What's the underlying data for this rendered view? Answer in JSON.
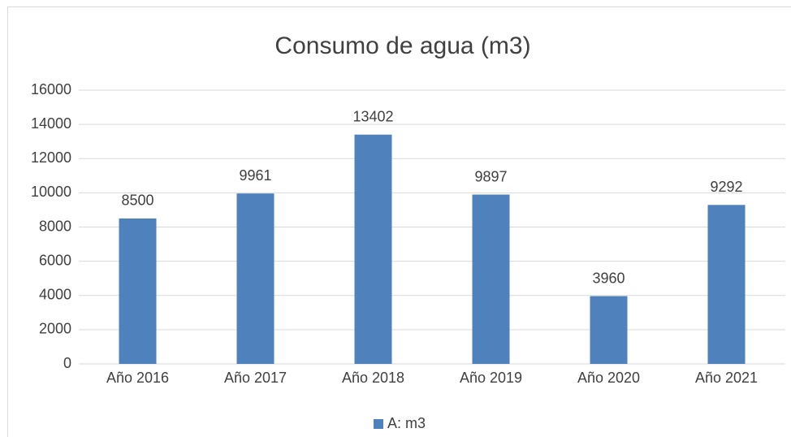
{
  "chart_data": {
    "type": "bar",
    "title": "Consumo de agua (m3)",
    "categories": [
      "Año 2016",
      "Año 2017",
      "Año 2018",
      "Año 2019",
      "Año 2020",
      "Año 2021"
    ],
    "series": [
      {
        "name": "A: m3",
        "color": "#4f81bd",
        "values": [
          8500,
          9961,
          13402,
          9897,
          3960,
          9292
        ]
      }
    ],
    "ylim": [
      0,
      16000
    ],
    "yticks": [
      0,
      2000,
      4000,
      6000,
      8000,
      10000,
      12000,
      14000,
      16000
    ],
    "grid": true,
    "legend": "bottom",
    "data_labels": true
  }
}
